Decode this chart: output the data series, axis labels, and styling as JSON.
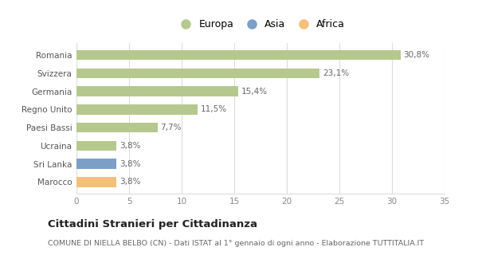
{
  "categories": [
    "Marocco",
    "Sri Lanka",
    "Ucraina",
    "Paesi Bassi",
    "Regno Unito",
    "Germania",
    "Svizzera",
    "Romania"
  ],
  "values": [
    3.8,
    3.8,
    3.8,
    7.7,
    11.5,
    15.4,
    23.1,
    30.8
  ],
  "labels": [
    "3,8%",
    "3,8%",
    "3,8%",
    "7,7%",
    "11,5%",
    "15,4%",
    "23,1%",
    "30,8%"
  ],
  "colors": [
    "#f5c07a",
    "#7b9fc7",
    "#b5c98e",
    "#b5c98e",
    "#b5c98e",
    "#b5c98e",
    "#b5c98e",
    "#b5c98e"
  ],
  "legend_labels": [
    "Europa",
    "Asia",
    "Africa"
  ],
  "legend_colors": [
    "#b5c98e",
    "#7b9fc7",
    "#f5c07a"
  ],
  "title": "Cittadini Stranieri per Cittadinanza",
  "subtitle": "COMUNE DI NIELLA BELBO (CN) - Dati ISTAT al 1° gennaio di ogni anno - Elaborazione TUTTITALIA.IT",
  "xlim": [
    0,
    35
  ],
  "xticks": [
    0,
    5,
    10,
    15,
    20,
    25,
    30,
    35
  ],
  "background_color": "#ffffff",
  "plot_bg_color": "#f8f8f8",
  "grid_color": "#dddddd"
}
